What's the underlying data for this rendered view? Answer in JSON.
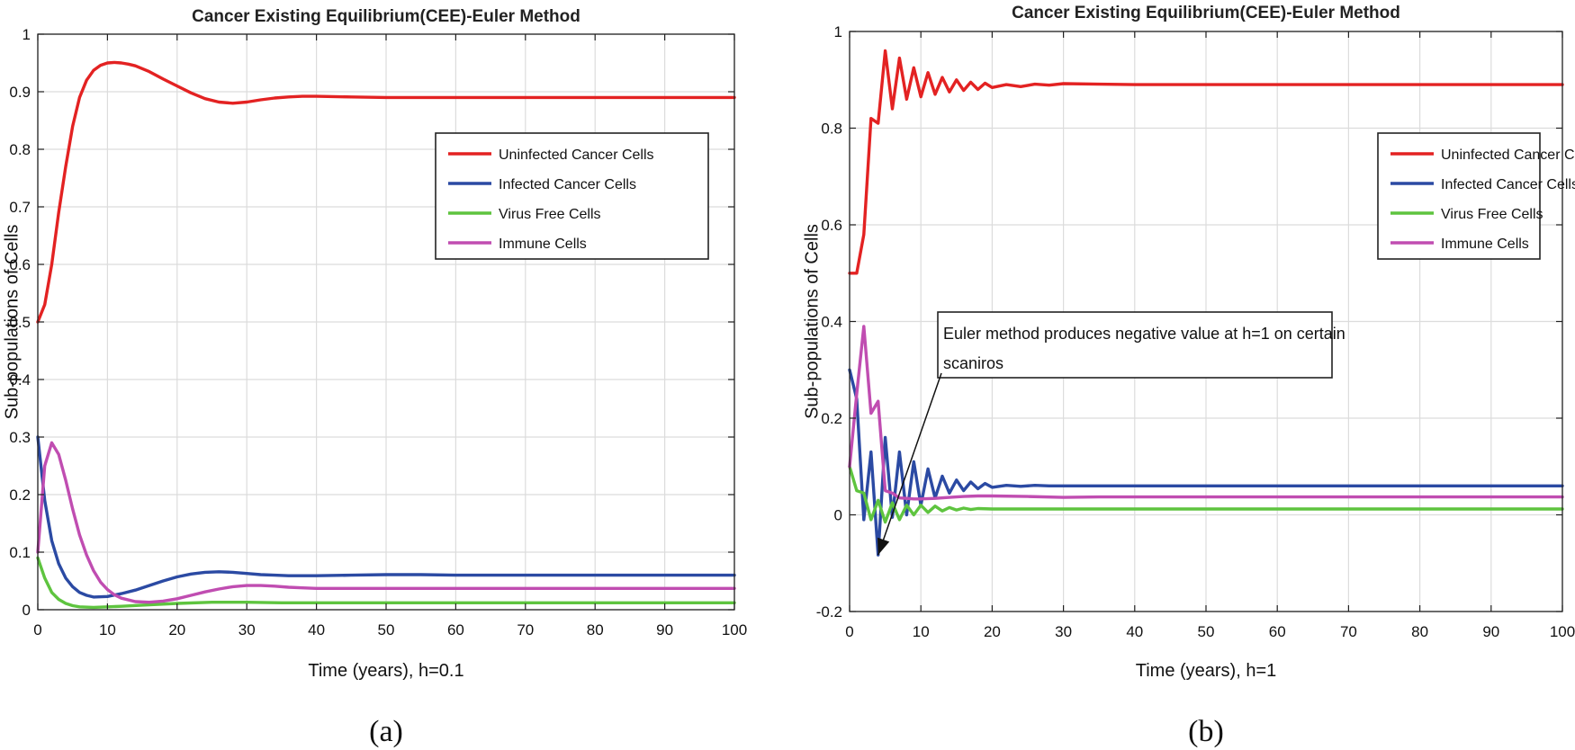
{
  "chart_data": [
    {
      "type": "line",
      "title": "Cancer Existing Equilibrium(CEE)-Euler Method",
      "xlabel": "Time (years), h=0.1",
      "ylabel": "Sub-populations of Cells",
      "caption": "(a)",
      "xlim": [
        0,
        100
      ],
      "ylim": [
        0,
        1
      ],
      "xticks": [
        "0",
        "10",
        "20",
        "30",
        "40",
        "50",
        "60",
        "70",
        "80",
        "90",
        "100"
      ],
      "yticks": [
        "0",
        "0.1",
        "0.2",
        "0.3",
        "0.4",
        "0.5",
        "0.6",
        "0.7",
        "0.8",
        "0.9",
        "1"
      ],
      "grid": true,
      "legend": "upper-right",
      "series": [
        {
          "name": "Uninfected Cancer Cells",
          "color": "#e32222",
          "x": [
            0,
            1,
            2,
            3,
            4,
            5,
            6,
            7,
            8,
            9,
            10,
            11,
            12,
            13,
            14,
            16,
            18,
            20,
            22,
            24,
            26,
            28,
            30,
            32,
            34,
            36,
            38,
            40,
            45,
            50,
            55,
            60,
            70,
            80,
            90,
            100
          ],
          "y": [
            0.5,
            0.53,
            0.6,
            0.69,
            0.77,
            0.84,
            0.89,
            0.92,
            0.937,
            0.946,
            0.95,
            0.951,
            0.95,
            0.948,
            0.945,
            0.935,
            0.922,
            0.91,
            0.898,
            0.888,
            0.882,
            0.88,
            0.882,
            0.886,
            0.889,
            0.891,
            0.892,
            0.892,
            0.891,
            0.89,
            0.89,
            0.89,
            0.89,
            0.89,
            0.89,
            0.89
          ]
        },
        {
          "name": "Infected Cancer Cells",
          "color": "#2b4aa3",
          "x": [
            0,
            1,
            2,
            3,
            4,
            5,
            6,
            7,
            8,
            10,
            12,
            14,
            16,
            18,
            20,
            22,
            24,
            26,
            28,
            30,
            32,
            34,
            36,
            38,
            40,
            45,
            50,
            55,
            60,
            70,
            80,
            90,
            100
          ],
          "y": [
            0.3,
            0.19,
            0.12,
            0.08,
            0.055,
            0.04,
            0.03,
            0.025,
            0.022,
            0.023,
            0.028,
            0.034,
            0.042,
            0.05,
            0.057,
            0.062,
            0.065,
            0.066,
            0.065,
            0.063,
            0.061,
            0.06,
            0.059,
            0.059,
            0.059,
            0.06,
            0.061,
            0.061,
            0.06,
            0.06,
            0.06,
            0.06,
            0.06
          ]
        },
        {
          "name": "Virus Free Cells",
          "color": "#5ec43f",
          "x": [
            0,
            1,
            2,
            3,
            4,
            5,
            6,
            8,
            10,
            12,
            15,
            20,
            25,
            30,
            35,
            40,
            50,
            60,
            70,
            80,
            90,
            100
          ],
          "y": [
            0.09,
            0.055,
            0.03,
            0.018,
            0.011,
            0.007,
            0.005,
            0.004,
            0.005,
            0.006,
            0.008,
            0.011,
            0.013,
            0.013,
            0.012,
            0.012,
            0.012,
            0.012,
            0.012,
            0.012,
            0.012,
            0.012
          ]
        },
        {
          "name": "Immune Cells",
          "color": "#c04db1",
          "x": [
            0,
            1,
            2,
            3,
            4,
            5,
            6,
            7,
            8,
            9,
            10,
            11,
            12,
            14,
            16,
            18,
            20,
            22,
            24,
            26,
            28,
            30,
            32,
            34,
            36,
            38,
            40,
            45,
            50,
            60,
            70,
            80,
            90,
            100
          ],
          "y": [
            0.1,
            0.25,
            0.29,
            0.27,
            0.225,
            0.175,
            0.13,
            0.095,
            0.068,
            0.048,
            0.035,
            0.026,
            0.02,
            0.014,
            0.013,
            0.015,
            0.019,
            0.025,
            0.031,
            0.036,
            0.04,
            0.042,
            0.042,
            0.041,
            0.039,
            0.038,
            0.037,
            0.037,
            0.037,
            0.037,
            0.037,
            0.037,
            0.037,
            0.037
          ]
        }
      ]
    },
    {
      "type": "line",
      "title": "Cancer Existing Equilibrium(CEE)-Euler Method",
      "xlabel": "Time (years), h=1",
      "ylabel": "Sub-populations of Cells",
      "caption": "(b)",
      "xlim": [
        0,
        100
      ],
      "ylim": [
        -0.2,
        1
      ],
      "xticks": [
        "0",
        "10",
        "20",
        "30",
        "40",
        "50",
        "60",
        "70",
        "80",
        "90",
        "100"
      ],
      "yticks": [
        "-0.2",
        "0",
        "0.2",
        "0.4",
        "0.6",
        "0.8",
        "1"
      ],
      "grid": true,
      "legend": "upper-right",
      "annotation": {
        "text_lines": [
          "Euler method produces negative value at h=1 on certain",
          "scaniros"
        ],
        "arrow_to": [
          4,
          -0.083
        ]
      },
      "series": [
        {
          "name": "Uninfected Cancer Cells",
          "color": "#e32222",
          "x": [
            0,
            1,
            2,
            3,
            4,
            5,
            6,
            7,
            8,
            9,
            10,
            11,
            12,
            13,
            14,
            15,
            16,
            17,
            18,
            19,
            20,
            22,
            24,
            26,
            28,
            30,
            35,
            40,
            50,
            60,
            70,
            80,
            90,
            100
          ],
          "y": [
            0.5,
            0.5,
            0.58,
            0.82,
            0.81,
            0.96,
            0.84,
            0.945,
            0.86,
            0.925,
            0.865,
            0.915,
            0.87,
            0.905,
            0.875,
            0.9,
            0.878,
            0.895,
            0.88,
            0.893,
            0.884,
            0.89,
            0.886,
            0.891,
            0.889,
            0.892,
            0.891,
            0.89,
            0.89,
            0.89,
            0.89,
            0.89,
            0.89,
            0.89
          ]
        },
        {
          "name": "Infected Cancer Cells",
          "color": "#2b4aa3",
          "x": [
            0,
            1,
            2,
            3,
            4,
            5,
            6,
            7,
            8,
            9,
            10,
            11,
            12,
            13,
            14,
            15,
            16,
            17,
            18,
            19,
            20,
            22,
            24,
            26,
            28,
            30,
            35,
            40,
            50,
            60,
            70,
            80,
            90,
            100
          ],
          "y": [
            0.3,
            0.24,
            -0.01,
            0.13,
            -0.083,
            0.16,
            -0.005,
            0.13,
            0.0,
            0.11,
            0.02,
            0.095,
            0.035,
            0.08,
            0.045,
            0.072,
            0.05,
            0.068,
            0.054,
            0.065,
            0.057,
            0.061,
            0.059,
            0.061,
            0.06,
            0.06,
            0.06,
            0.06,
            0.06,
            0.06,
            0.06,
            0.06,
            0.06,
            0.06
          ]
        },
        {
          "name": "Virus Free Cells",
          "color": "#5ec43f",
          "x": [
            0,
            1,
            2,
            3,
            4,
            5,
            6,
            7,
            8,
            9,
            10,
            11,
            12,
            13,
            14,
            15,
            16,
            17,
            18,
            20,
            22,
            25,
            30,
            40,
            50,
            60,
            70,
            80,
            90,
            100
          ],
          "y": [
            0.1,
            0.05,
            0.045,
            -0.01,
            0.03,
            -0.015,
            0.025,
            -0.01,
            0.02,
            0.0,
            0.02,
            0.005,
            0.018,
            0.008,
            0.015,
            0.01,
            0.014,
            0.011,
            0.013,
            0.012,
            0.012,
            0.012,
            0.012,
            0.012,
            0.012,
            0.012,
            0.012,
            0.012,
            0.012,
            0.012
          ]
        },
        {
          "name": "Immune Cells",
          "color": "#c04db1",
          "x": [
            0,
            1,
            2,
            3,
            4,
            5,
            6,
            7,
            8,
            9,
            10,
            12,
            14,
            16,
            18,
            20,
            25,
            30,
            35,
            40,
            50,
            60,
            70,
            80,
            90,
            100
          ],
          "y": [
            0.1,
            0.25,
            0.39,
            0.21,
            0.235,
            0.05,
            0.045,
            0.035,
            0.034,
            0.033,
            0.033,
            0.034,
            0.036,
            0.038,
            0.039,
            0.039,
            0.038,
            0.036,
            0.037,
            0.037,
            0.037,
            0.037,
            0.037,
            0.037,
            0.037,
            0.037
          ]
        }
      ]
    }
  ]
}
